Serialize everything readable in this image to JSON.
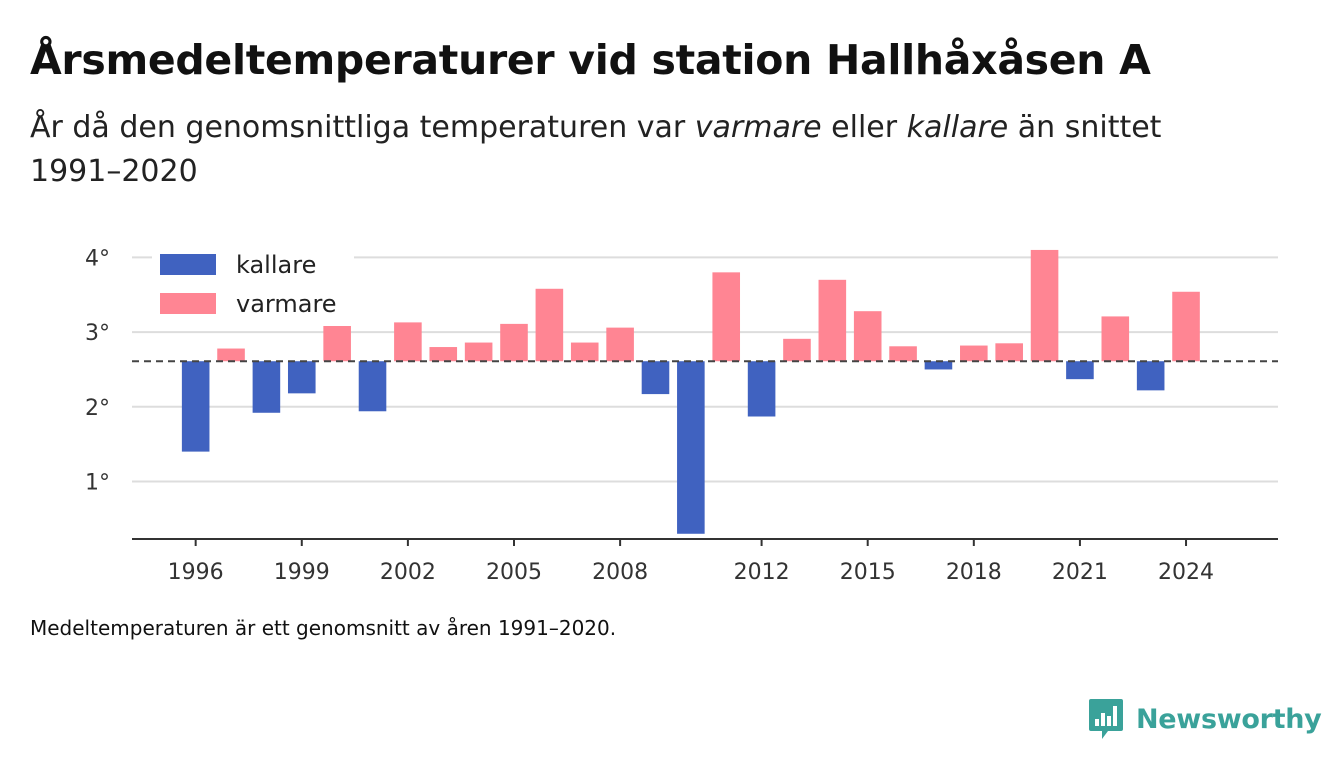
{
  "title": "Årsmedeltemperaturer vid station Hallhåxåsen A",
  "subtitle": {
    "part1": "År då den genomsnittliga temperaturen var ",
    "warm_word": "varmare",
    "part2": " eller ",
    "cold_word": "kallare",
    "part3": " än snittet 1991–2020"
  },
  "note": "Medeltemperaturen är ett genomsnitt av åren 1991–2020.",
  "brand": {
    "name": "Newsworthy",
    "icon": "newsworthy-logo-icon",
    "color": "#3aa29a"
  },
  "chart_data": {
    "type": "bar",
    "title": "",
    "xlabel": "",
    "ylabel": "",
    "baseline": 2.61,
    "baseline_style": "dashed",
    "ylim": [
      0.23,
      4.3
    ],
    "xlim": [
      1994.2,
      2026.6
    ],
    "grid": true,
    "legend_position": "top-left",
    "y_ticks": [
      {
        "value": 1,
        "label": "1°"
      },
      {
        "value": 2,
        "label": "2°"
      },
      {
        "value": 3,
        "label": "3°"
      },
      {
        "value": 4,
        "label": "4°"
      }
    ],
    "x_ticks": [
      {
        "value": 1996,
        "label": "1996"
      },
      {
        "value": 1999,
        "label": "1999"
      },
      {
        "value": 2002,
        "label": "2002"
      },
      {
        "value": 2005,
        "label": "2005"
      },
      {
        "value": 2008,
        "label": "2008"
      },
      {
        "value": 2012,
        "label": "2012"
      },
      {
        "value": 2015,
        "label": "2015"
      },
      {
        "value": 2018,
        "label": "2018"
      },
      {
        "value": 2021,
        "label": "2021"
      },
      {
        "value": 2024,
        "label": "2024"
      }
    ],
    "legend": [
      {
        "key": "colder",
        "label": "kallare",
        "color": "#4062c0"
      },
      {
        "key": "warmer",
        "label": "varmare",
        "color": "#ff8593"
      }
    ],
    "years": [
      1996,
      1997,
      1998,
      1999,
      2000,
      2001,
      2002,
      2003,
      2004,
      2005,
      2006,
      2007,
      2008,
      2009,
      2010,
      2011,
      2012,
      2013,
      2014,
      2015,
      2016,
      2017,
      2018,
      2019,
      2020,
      2021,
      2022,
      2023,
      2024
    ],
    "values": [
      1.4,
      2.78,
      1.92,
      2.18,
      3.19,
      1.94,
      3.13,
      2.8,
      2.86,
      3.11,
      3.58,
      2.86,
      3.06,
      2.17,
      0.3,
      3.8,
      1.87,
      2.91,
      3.7,
      3.28,
      2.81,
      2.5,
      2.82,
      2.85,
      4.1,
      2.37,
      3.21,
      2.22,
      3.54
    ]
  }
}
